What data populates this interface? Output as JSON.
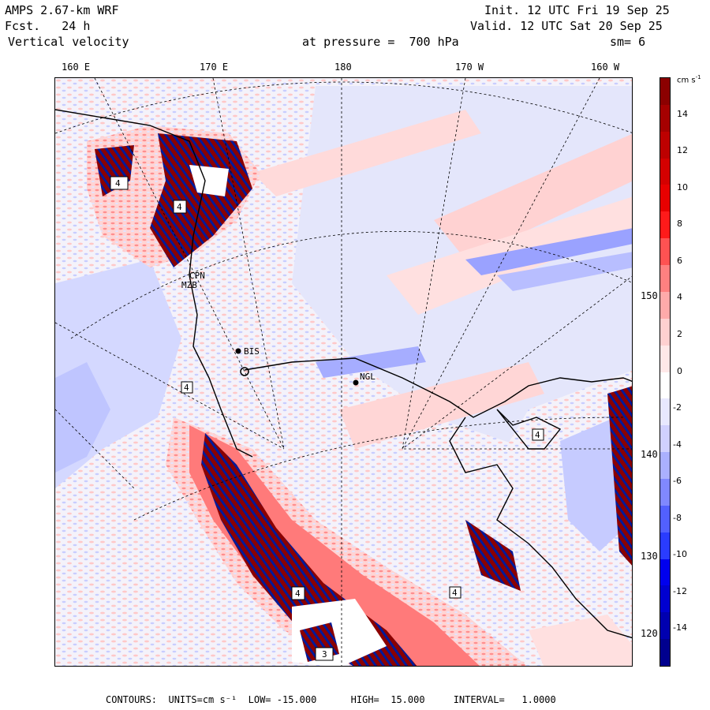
{
  "header": {
    "model": "AMPS 2.67-km WRF",
    "forecast_label": "Fcst.",
    "forecast_hours": "24 h",
    "field": "Vertical velocity",
    "init": "Init. 12 UTC Fri 19 Sep 25",
    "valid": "Valid. 12 UTC Sat 20 Sep 25",
    "level": "at pressure =  700 hPa",
    "smooth": "sm= 6"
  },
  "longitude_labels": [
    "160 E",
    "170 E",
    "180",
    "170 W",
    "160 W"
  ],
  "latitude_labels": [
    "150 W",
    "140 W",
    "130 W",
    "120 W"
  ],
  "stations": [
    "BIS",
    "NGL",
    "CPN",
    "MZB"
  ],
  "max_box_labels": [
    "4",
    "4",
    "4",
    "4",
    "4",
    "4",
    "3"
  ],
  "colorbar": {
    "unit": "cm s-1",
    "ticks": [
      "14",
      "12",
      "10",
      "8",
      "6",
      "4",
      "2",
      "0",
      "-2",
      "-4",
      "-6",
      "-8",
      "-10",
      "-12",
      "-14"
    ],
    "colors": [
      "#8b0000",
      "#a50000",
      "#bd0000",
      "#d40000",
      "#e80000",
      "#ff1a1a",
      "#ff5252",
      "#ff8080",
      "#ffaaaa",
      "#ffd0d0",
      "#ffe8e8",
      "#ffffff",
      "#e8e8ff",
      "#d0d0ff",
      "#aab0ff",
      "#8088ff",
      "#5260ff",
      "#2a3cff",
      "#0000ee",
      "#0000d0",
      "#0000b0",
      "#00008e"
    ]
  },
  "footer": {
    "text": "CONTOURS:  UNITS=cm s⁻¹  LOW= -15.000      HIGH=  15.000     INTERVAL=   1.0000"
  },
  "colors": {
    "background": "#e6e6f8",
    "positive": "#ff9a9a",
    "strong_positive": "#8b0000",
    "negative": "#8a94ff",
    "strong_negative": "#0000a0"
  }
}
